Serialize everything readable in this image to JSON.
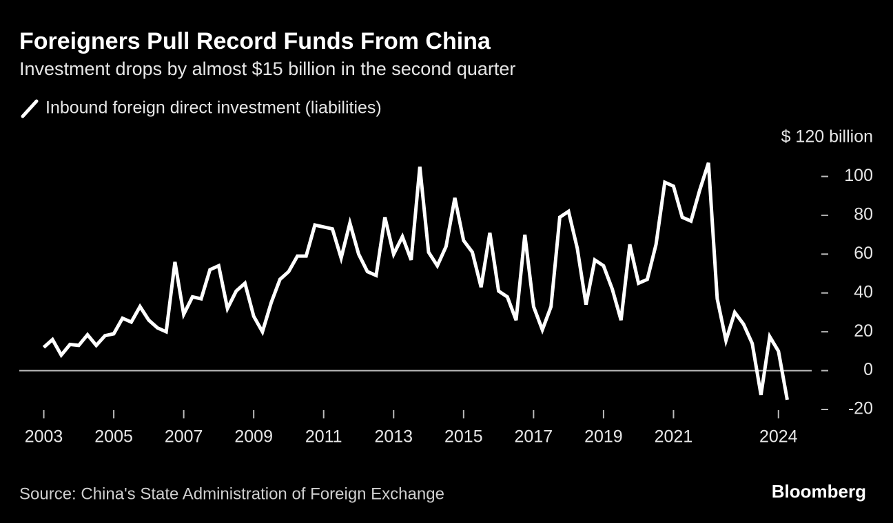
{
  "chart_data": {
    "type": "line",
    "title": "Foreigners Pull Record Funds From China",
    "subtitle": "Investment drops by almost $15 billion in the second quarter",
    "source": "Source: China's State Administration of Foreign Exchange",
    "brand": "Bloomberg",
    "x": [
      2003,
      2003.25,
      2003.5,
      2003.75,
      2004,
      2004.25,
      2004.5,
      2004.75,
      2005,
      2005.25,
      2005.5,
      2005.75,
      2006,
      2006.25,
      2006.5,
      2006.75,
      2007,
      2007.25,
      2007.5,
      2007.75,
      2008,
      2008.25,
      2008.5,
      2008.75,
      2009,
      2009.25,
      2009.5,
      2009.75,
      2010,
      2010.25,
      2010.5,
      2010.75,
      2011,
      2011.25,
      2011.5,
      2011.75,
      2012,
      2012.25,
      2012.5,
      2012.75,
      2013,
      2013.25,
      2013.5,
      2013.75,
      2014,
      2014.25,
      2014.5,
      2014.75,
      2015,
      2015.25,
      2015.5,
      2015.75,
      2016,
      2016.25,
      2016.5,
      2016.75,
      2017,
      2017.25,
      2017.5,
      2017.75,
      2018,
      2018.25,
      2018.5,
      2018.75,
      2019,
      2019.25,
      2019.5,
      2019.75,
      2020,
      2020.25,
      2020.5,
      2020.75,
      2021,
      2021.25,
      2021.5,
      2021.75,
      2022,
      2022.25,
      2022.5,
      2022.75,
      2023,
      2023.25,
      2023.5,
      2023.75,
      2024,
      2024.25
    ],
    "series": [
      {
        "name": "Inbound foreign direct investment (liabilities)",
        "color": "#ffffff",
        "values": [
          12,
          16,
          8,
          13.5,
          13,
          18.5,
          13,
          18,
          19,
          27,
          25,
          33,
          26,
          22,
          20,
          56,
          29,
          38,
          37,
          52,
          54,
          32,
          41,
          45,
          28,
          20,
          35,
          47,
          51,
          59,
          59,
          75,
          74,
          73,
          58,
          76,
          60,
          51,
          49,
          79,
          60,
          69,
          57,
          105,
          61,
          54,
          64,
          89,
          67,
          61,
          43,
          71,
          41,
          38,
          26,
          70,
          33,
          21,
          33,
          79,
          82,
          63,
          34,
          57,
          54,
          42,
          26,
          65,
          45,
          47,
          65,
          97,
          95,
          79,
          77,
          93,
          107,
          37,
          15.5,
          30,
          24,
          14,
          -12.5,
          17.5,
          10,
          -15
        ]
      }
    ],
    "xlim": [
      2002.3,
      2024.95
    ],
    "xticks": [
      2003,
      2005,
      2007,
      2009,
      2011,
      2013,
      2015,
      2017,
      2019,
      2021,
      2024
    ],
    "ylim": [
      -20,
      120
    ],
    "yticks": [
      -20,
      0,
      20,
      40,
      60,
      80,
      100,
      {
        "value": 120,
        "label": "$ 120 billion"
      }
    ]
  }
}
